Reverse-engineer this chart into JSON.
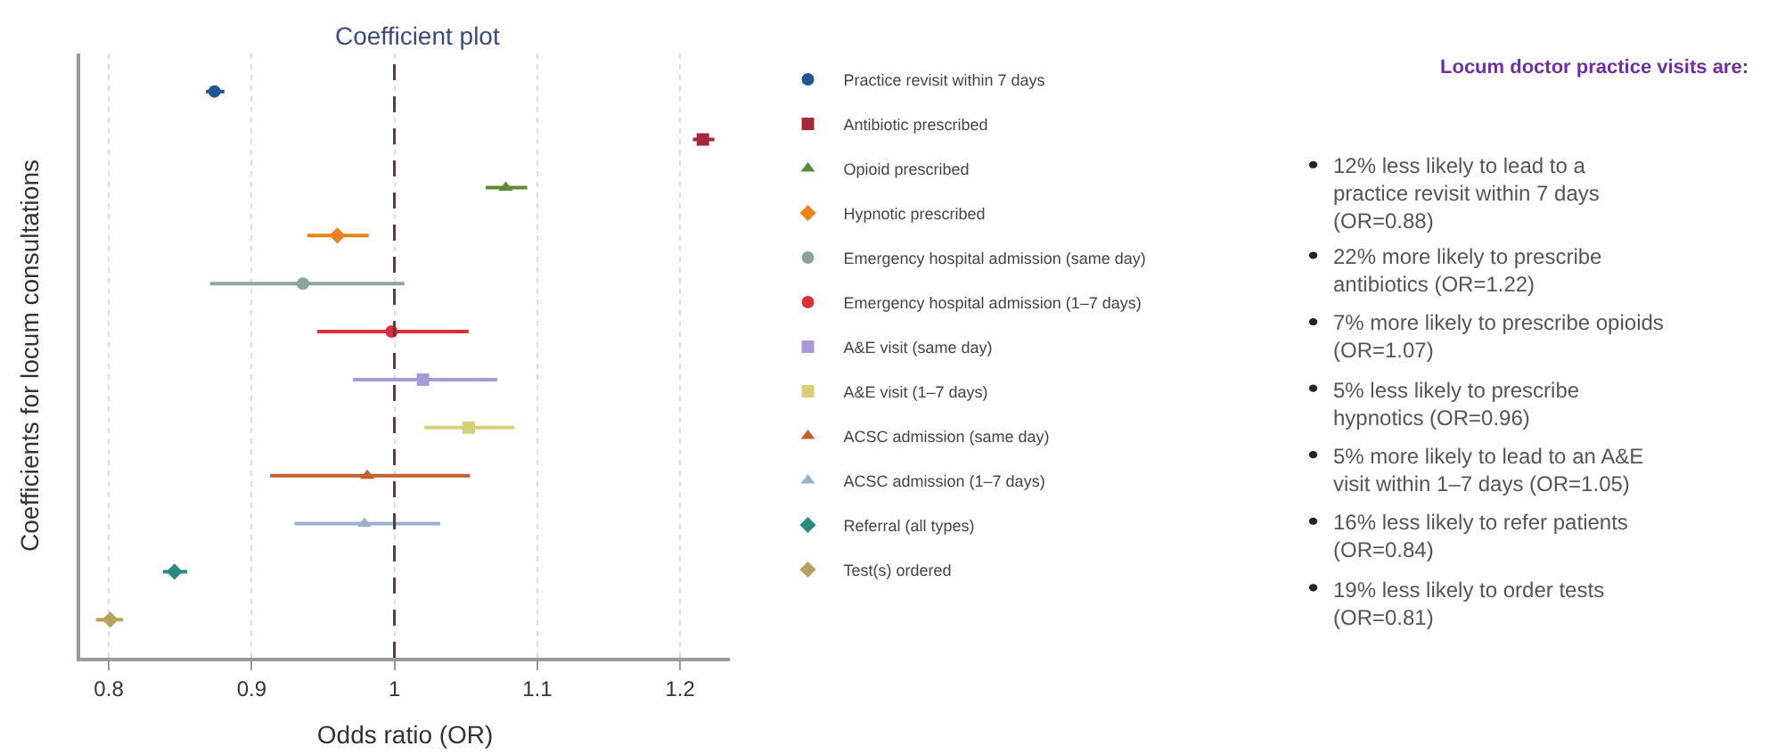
{
  "chart_data": [
    {
      "type": "scatter",
      "orientation": "horizontal",
      "title": "Coefficient plot",
      "xlabel": "Odds ratio (OR)",
      "ylabel": "Coefficients for locum consultations",
      "categories": [
        null,
        null,
        null,
        null,
        null,
        null,
        null,
        null,
        null,
        null,
        null,
        null
      ],
      "series": [
        {
          "name": "Practice revisit within 7 days",
          "color": "#1f5591",
          "marker": "circle",
          "values": [
            0.874,
            null,
            null,
            null,
            null,
            null,
            null,
            null,
            null,
            null,
            null,
            null
          ],
          "errors": [
            [
              0.868,
              0.881
            ],
            null,
            null,
            null,
            null,
            null,
            null,
            null,
            null,
            null,
            null,
            null
          ]
        },
        {
          "name": "Antibiotic prescribed",
          "color": "#a3283a",
          "marker": "square",
          "values": [
            null,
            1.216,
            null,
            null,
            null,
            null,
            null,
            null,
            null,
            null,
            null,
            null
          ],
          "errors": [
            null,
            [
              1.209,
              1.224
            ],
            null,
            null,
            null,
            null,
            null,
            null,
            null,
            null,
            null,
            null
          ]
        },
        {
          "name": "Opioid prescribed",
          "color": "#5a8a3a",
          "marker": "triangle",
          "values": [
            null,
            null,
            1.078,
            null,
            null,
            null,
            null,
            null,
            null,
            null,
            null,
            null
          ],
          "errors": [
            null,
            null,
            [
              1.064,
              1.093
            ],
            null,
            null,
            null,
            null,
            null,
            null,
            null,
            null,
            null
          ]
        },
        {
          "name": "Hypnotic prescribed",
          "color": "#e8821e",
          "marker": "diamond",
          "values": [
            null,
            null,
            null,
            0.96,
            null,
            null,
            null,
            null,
            null,
            null,
            null,
            null
          ],
          "errors": [
            null,
            null,
            null,
            [
              0.939,
              0.982
            ],
            null,
            null,
            null,
            null,
            null,
            null,
            null,
            null
          ]
        },
        {
          "name": "Emergency hospital admission (same day)",
          "color": "#8aa69a",
          "marker": "circle",
          "values": [
            null,
            null,
            null,
            null,
            0.936,
            null,
            null,
            null,
            null,
            null,
            null,
            null
          ],
          "errors": [
            null,
            null,
            null,
            null,
            [
              0.871,
              1.007
            ],
            null,
            null,
            null,
            null,
            null,
            null,
            null
          ]
        },
        {
          "name": "Emergency hospital admission (1–7 days)",
          "color": "#d9303e",
          "marker": "circle",
          "values": [
            null,
            null,
            null,
            null,
            null,
            0.998,
            null,
            null,
            null,
            null,
            null,
            null
          ],
          "errors": [
            null,
            null,
            null,
            null,
            null,
            [
              0.946,
              1.052
            ],
            null,
            null,
            null,
            null,
            null,
            null
          ]
        },
        {
          "name": "A&E visit (same day)",
          "color": "#a89ad8",
          "marker": "square",
          "values": [
            null,
            null,
            null,
            null,
            null,
            null,
            1.02,
            null,
            null,
            null,
            null,
            null
          ],
          "errors": [
            null,
            null,
            null,
            null,
            null,
            null,
            [
              0.971,
              1.072
            ],
            null,
            null,
            null,
            null,
            null
          ]
        },
        {
          "name": "A&E visit (1–7 days)",
          "color": "#d6cf7a",
          "marker": "square",
          "values": [
            null,
            null,
            null,
            null,
            null,
            null,
            null,
            1.052,
            null,
            null,
            null,
            null
          ],
          "errors": [
            null,
            null,
            null,
            null,
            null,
            null,
            null,
            [
              1.021,
              1.084
            ],
            null,
            null,
            null,
            null
          ]
        },
        {
          "name": "ACSC admission (same day)",
          "color": "#c0612e",
          "marker": "triangle",
          "values": [
            null,
            null,
            null,
            null,
            null,
            null,
            null,
            null,
            0.981,
            null,
            null,
            null
          ],
          "errors": [
            null,
            null,
            null,
            null,
            null,
            null,
            null,
            null,
            [
              0.913,
              1.053
            ],
            null,
            null,
            null
          ]
        },
        {
          "name": "ACSC admission (1–7 days)",
          "color": "#9ab0cc",
          "marker": "triangle",
          "values": [
            null,
            null,
            null,
            null,
            null,
            null,
            null,
            null,
            null,
            0.979,
            null,
            null
          ],
          "errors": [
            null,
            null,
            null,
            null,
            null,
            null,
            null,
            null,
            null,
            [
              0.93,
              1.032
            ],
            null,
            null
          ]
        },
        {
          "name": "Referral (all types)",
          "color": "#2a8a7e",
          "marker": "diamond",
          "values": [
            null,
            null,
            null,
            null,
            null,
            null,
            null,
            null,
            null,
            null,
            0.846,
            null
          ],
          "errors": [
            null,
            null,
            null,
            null,
            null,
            null,
            null,
            null,
            null,
            null,
            [
              0.838,
              0.855
            ],
            null
          ]
        },
        {
          "name": "Test(s) ordered",
          "color": "#b8a060",
          "marker": "diamond",
          "values": [
            null,
            null,
            null,
            null,
            null,
            null,
            null,
            null,
            null,
            null,
            null,
            0.801
          ],
          "errors": [
            null,
            null,
            null,
            null,
            null,
            null,
            null,
            null,
            null,
            null,
            null,
            [
              0.791,
              0.81
            ]
          ]
        }
      ],
      "xlim": [
        0.78,
        1.235
      ],
      "xticks": [
        0.8,
        0.9,
        1,
        1.1,
        1.2
      ],
      "grid": "x",
      "legend": "right",
      "ref_lines": [
        {
          "axis": "x",
          "value": 1,
          "color": "#5a3a3a",
          "line_style": "dashed"
        }
      ]
    },
    {
      "type": "other",
      "title": "Locum doctor practice visits are:",
      "annotations": [
        "12% less likely to lead to a practice revisit within 7 days (OR=0.88)",
        "22% more likely to prescribe antibiotics (OR=1.22)",
        "7% more likely to prescribe opioids (OR=1.07)",
        "5% less likely to prescribe hypnotics (OR=0.96)",
        "5% more likely to lead to an A&E visit within 1–7 days (OR=1.05)",
        "16% less likely to refer patients (OR=0.84)",
        "19% less likely to order tests (OR=0.81)"
      ]
    }
  ]
}
